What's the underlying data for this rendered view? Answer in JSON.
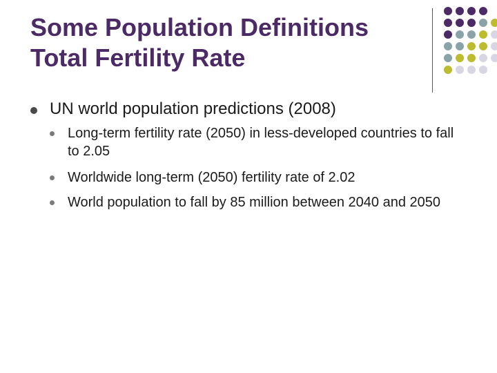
{
  "slide": {
    "title_lines": [
      "Some Population Definitions",
      "Total Fertility Rate"
    ],
    "bullet": "UN world population predictions (2008)",
    "sub_bullets": [
      "Long-term fertility rate (2050) in less-developed countries to fall to 2.05",
      "Worldwide long-term (2050) fertility rate of 2.02",
      "World population to fall by 85 million between 2040 and 2050"
    ]
  },
  "colors": {
    "title": "#4b2a66",
    "dot_purple": "#4b2a66",
    "dot_teal": "#8aa3a8",
    "dot_olive": "#bdbb2e",
    "dot_lavender": "#d8d6e2"
  }
}
